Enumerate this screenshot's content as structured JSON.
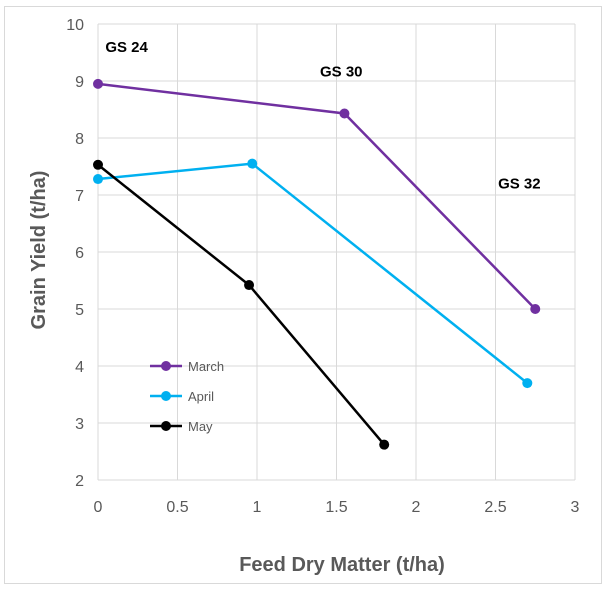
{
  "chart_data": {
    "type": "line",
    "title": "",
    "xlabel": "Feed Dry Matter (t/ha)",
    "ylabel": "Grain Yield (t/ha)",
    "xlim": [
      0,
      3
    ],
    "ylim": [
      2,
      10
    ],
    "x_ticks": [
      "0",
      "0.5",
      "1",
      "1.5",
      "2",
      "2.5",
      "3"
    ],
    "x_tick_values": [
      0,
      0.5,
      1,
      1.5,
      2,
      2.5,
      3
    ],
    "y_ticks": [
      "2",
      "3",
      "4",
      "5",
      "6",
      "7",
      "8",
      "9",
      "10"
    ],
    "y_tick_values": [
      2,
      3,
      4,
      5,
      6,
      7,
      8,
      9,
      10
    ],
    "grid": true,
    "legend_position": "lower-left",
    "series": [
      {
        "name": "March",
        "color": "#7030a0",
        "points": [
          [
            0,
            8.95
          ],
          [
            1.55,
            8.43
          ],
          [
            2.75,
            5.0
          ]
        ]
      },
      {
        "name": "April",
        "color": "#00b0f0",
        "points": [
          [
            0,
            7.28
          ],
          [
            0.97,
            7.55
          ],
          [
            2.7,
            3.7
          ]
        ]
      },
      {
        "name": "May",
        "color": "#000000",
        "points": [
          [
            0,
            7.53
          ],
          [
            0.95,
            5.42
          ],
          [
            1.8,
            2.62
          ]
        ]
      }
    ],
    "annotations": [
      {
        "text": "GS 24",
        "x": 0.18,
        "y": 9.6
      },
      {
        "text": "GS 30",
        "x": 1.53,
        "y": 9.17
      },
      {
        "text": "GS 32",
        "x": 2.65,
        "y": 7.2
      }
    ]
  }
}
